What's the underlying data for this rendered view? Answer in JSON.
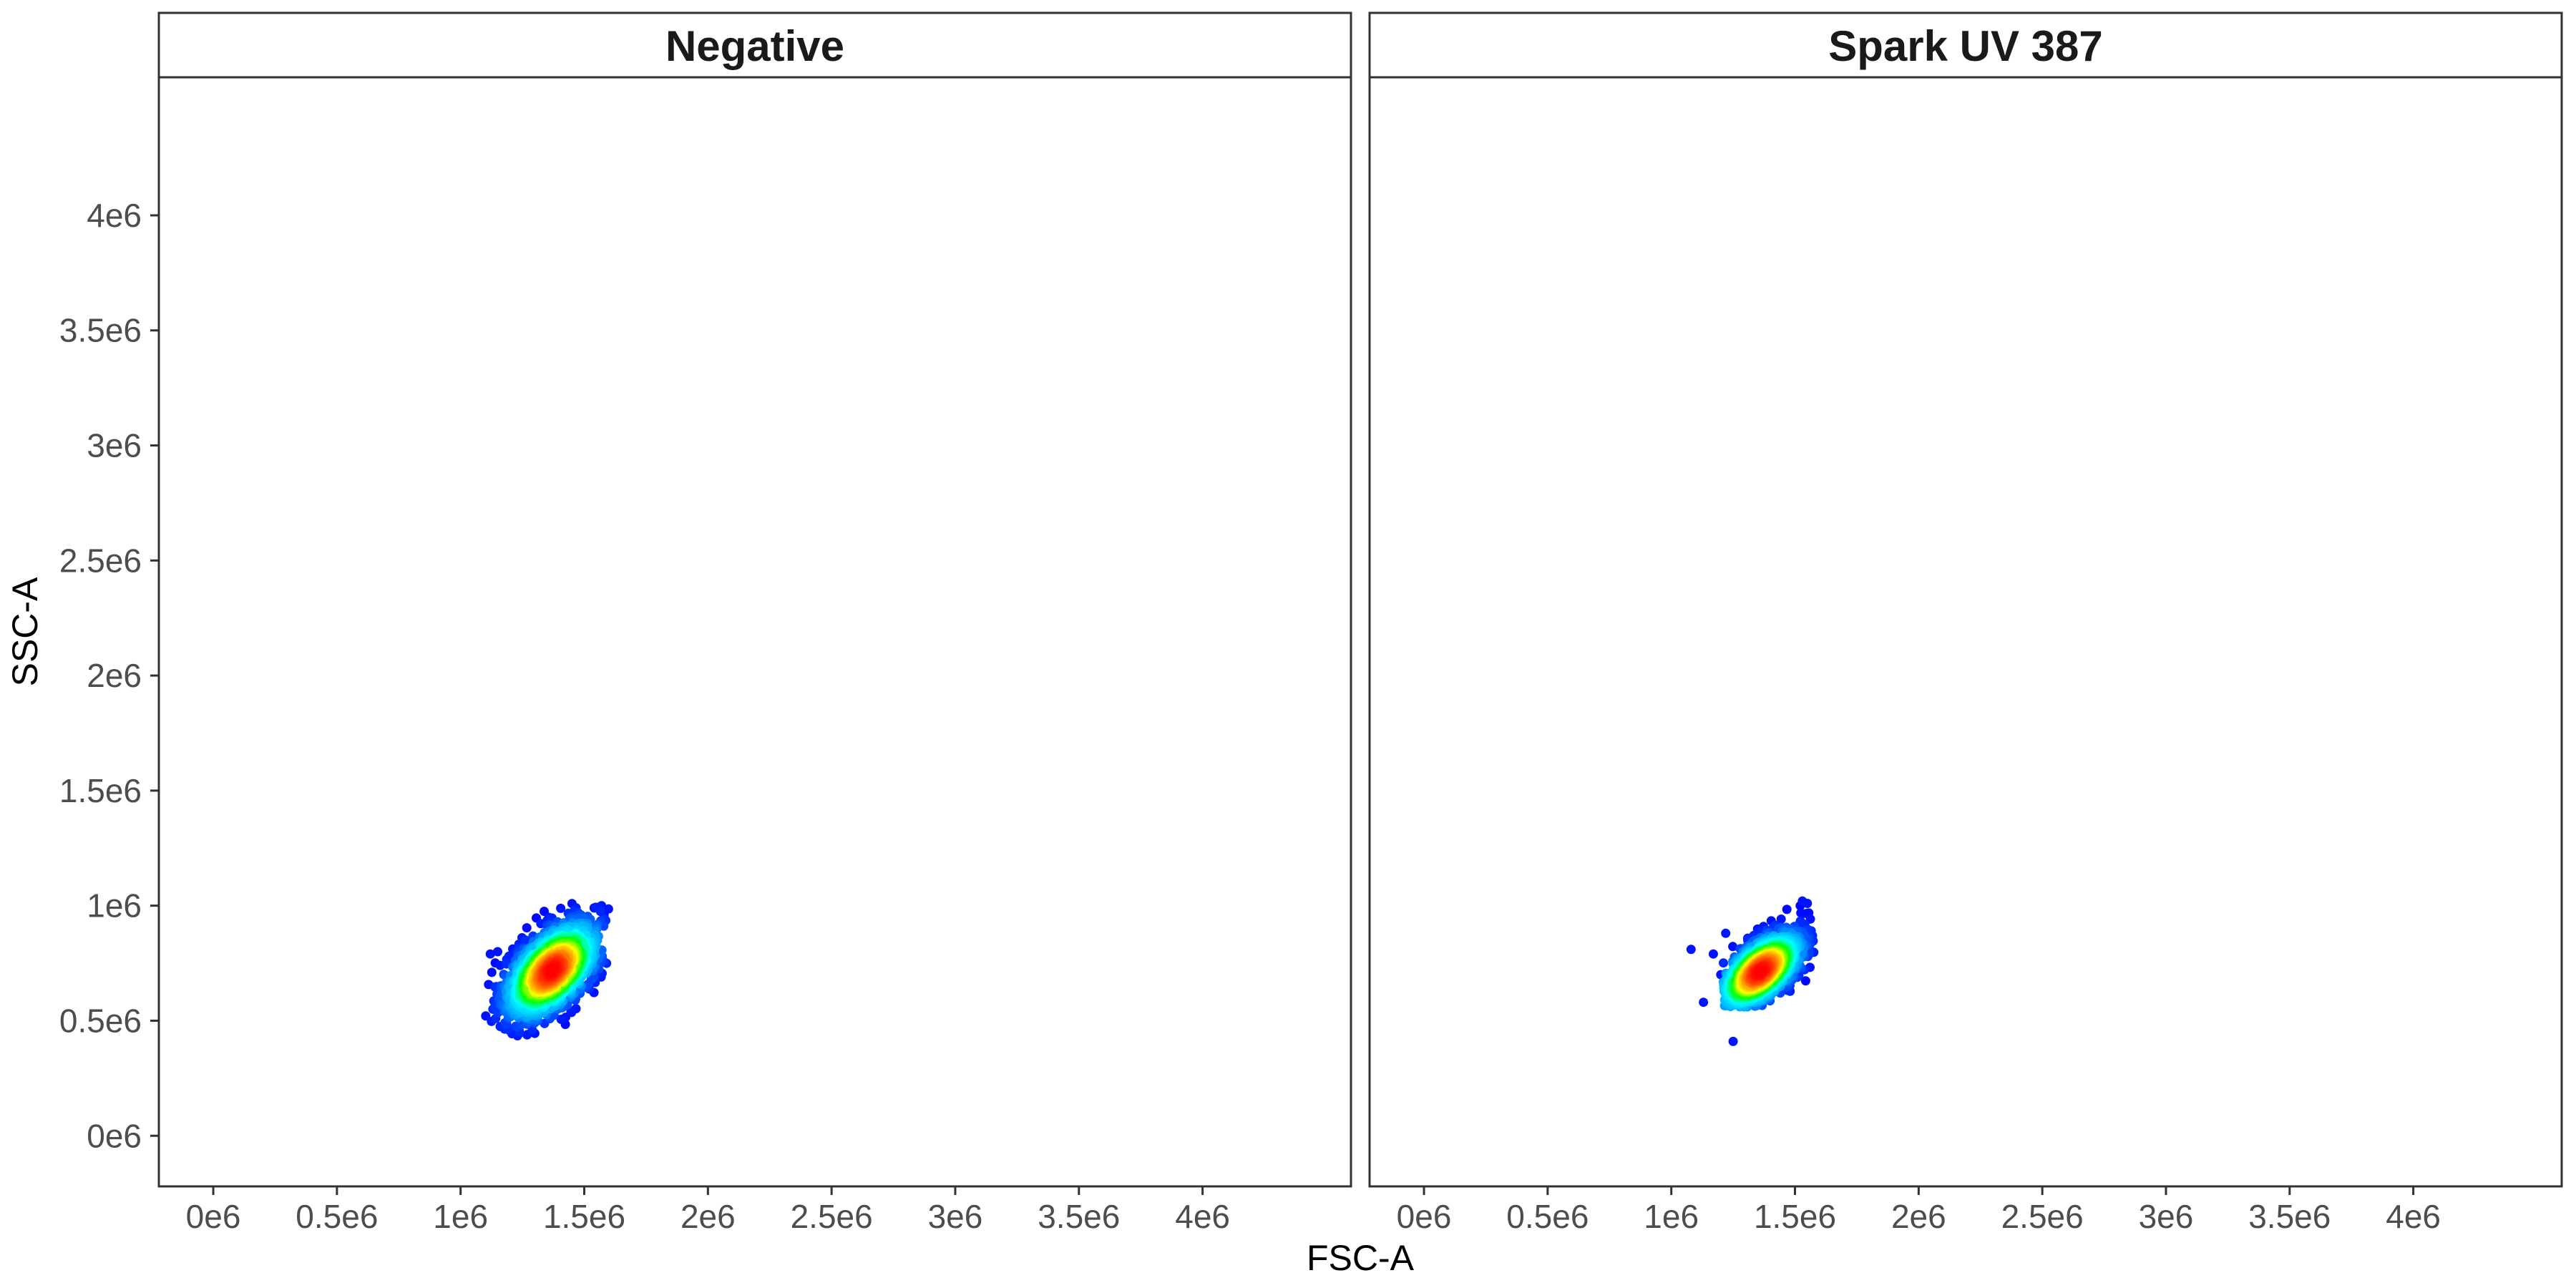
{
  "chart_data": {
    "type": "scatter",
    "xlabel": "FSC-A",
    "ylabel": "SSC-A",
    "xlim": [
      -220000,
      4600000
    ],
    "ylim": [
      -220000,
      4600000
    ],
    "x_ticks": [
      {
        "value": 0,
        "label": "0e6"
      },
      {
        "value": 500000,
        "label": "0.5e6"
      },
      {
        "value": 1000000,
        "label": "1e6"
      },
      {
        "value": 1500000,
        "label": "1.5e6"
      },
      {
        "value": 2000000,
        "label": "2e6"
      },
      {
        "value": 2500000,
        "label": "2.5e6"
      },
      {
        "value": 3000000,
        "label": "3e6"
      },
      {
        "value": 3500000,
        "label": "3.5e6"
      },
      {
        "value": 4000000,
        "label": "4e6"
      }
    ],
    "y_ticks": [
      {
        "value": 0,
        "label": "0e6"
      },
      {
        "value": 500000,
        "label": "0.5e6"
      },
      {
        "value": 1000000,
        "label": "1e6"
      },
      {
        "value": 1500000,
        "label": "1.5e6"
      },
      {
        "value": 2000000,
        "label": "2e6"
      },
      {
        "value": 2500000,
        "label": "2.5e6"
      },
      {
        "value": 3000000,
        "label": "3e6"
      },
      {
        "value": 3500000,
        "label": "3.5e6"
      },
      {
        "value": 4000000,
        "label": "4e6"
      }
    ],
    "grid": false,
    "density_color_scale": [
      "#0000ff",
      "#00a8ff",
      "#00ffff",
      "#00ff00",
      "#ffff00",
      "#ff8000",
      "#ff0000"
    ],
    "panels": [
      {
        "label": "Negative",
        "population": {
          "center": [
            1370000,
            720000
          ],
          "spread": [
            95000,
            105000
          ],
          "correlation": 0.55,
          "x_range": [
            1100000,
            1600000
          ],
          "y_range": [
            430000,
            1010000
          ]
        },
        "outliers": [
          {
            "x": 1120000,
            "y": 790000
          },
          {
            "x": 1150000,
            "y": 800000
          },
          {
            "x": 1570000,
            "y": 1000000
          },
          {
            "x": 1540000,
            "y": 990000
          },
          {
            "x": 1580000,
            "y": 960000
          },
          {
            "x": 1270000,
            "y": 440000
          },
          {
            "x": 1300000,
            "y": 445000
          }
        ]
      },
      {
        "label": "Spark UV 387",
        "population": {
          "center": [
            1360000,
            715000
          ],
          "spread": [
            85000,
            85000
          ],
          "correlation": 0.6,
          "x_range": [
            1210000,
            1580000
          ],
          "y_range": [
            560000,
            1020000
          ]
        },
        "outliers": [
          {
            "x": 1080000,
            "y": 810000
          },
          {
            "x": 1130000,
            "y": 580000
          },
          {
            "x": 1250000,
            "y": 410000
          },
          {
            "x": 1170000,
            "y": 790000
          },
          {
            "x": 1220000,
            "y": 880000
          },
          {
            "x": 1200000,
            "y": 700000
          },
          {
            "x": 1550000,
            "y": 1010000
          },
          {
            "x": 1530000,
            "y": 1020000
          }
        ]
      }
    ]
  }
}
